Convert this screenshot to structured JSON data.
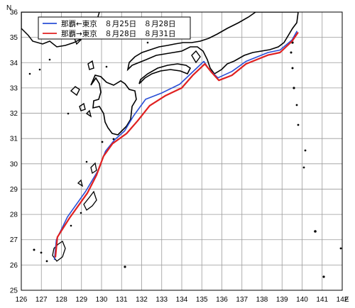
{
  "map": {
    "lat_axis": {
      "label": "N",
      "ticks": [
        "25",
        "26",
        "27",
        "28",
        "29",
        "30",
        "31",
        "32",
        "33",
        "34",
        "35",
        "36"
      ]
    },
    "lon_axis": {
      "label": "E",
      "ticks": [
        "126",
        "127",
        "128",
        "129",
        "130",
        "131",
        "132",
        "133",
        "134",
        "135",
        "136",
        "137",
        "138",
        "139",
        "140",
        "141",
        "142"
      ]
    },
    "legend": [
      {
        "text": "那覇←東京　８月25日　８月28日",
        "color": "#2a4fd6"
      },
      {
        "text": "那覇→東京　８月28日　８月31日",
        "color": "#e02020"
      }
    ],
    "routes": [
      {
        "id": "naha-from-tokyo",
        "color": "#2a4fd6",
        "points": [
          [
            127.65,
            26.2
          ],
          [
            127.75,
            27.0
          ],
          [
            128.3,
            27.9
          ],
          [
            129.2,
            28.9
          ],
          [
            129.8,
            29.7
          ],
          [
            130.2,
            30.5
          ],
          [
            130.65,
            30.95
          ],
          [
            131.15,
            31.3
          ],
          [
            131.6,
            31.9
          ],
          [
            132.2,
            32.55
          ],
          [
            133.0,
            32.8
          ],
          [
            133.9,
            33.15
          ],
          [
            134.5,
            33.6
          ],
          [
            135.1,
            34.05
          ],
          [
            135.35,
            33.75
          ],
          [
            135.8,
            33.4
          ],
          [
            136.5,
            33.65
          ],
          [
            137.2,
            34.05
          ],
          [
            138.3,
            34.4
          ],
          [
            138.9,
            34.5
          ],
          [
            139.5,
            34.9
          ],
          [
            139.75,
            35.25
          ]
        ]
      },
      {
        "id": "naha-to-tokyo",
        "color": "#e02020",
        "points": [
          [
            127.7,
            26.3
          ],
          [
            127.8,
            27.1
          ],
          [
            128.4,
            27.85
          ],
          [
            129.3,
            28.85
          ],
          [
            129.75,
            29.55
          ],
          [
            130.1,
            30.3
          ],
          [
            130.55,
            30.8
          ],
          [
            131.25,
            31.2
          ],
          [
            131.8,
            31.7
          ],
          [
            132.4,
            32.3
          ],
          [
            133.2,
            32.7
          ],
          [
            134.0,
            33.0
          ],
          [
            134.55,
            33.5
          ],
          [
            135.15,
            33.95
          ],
          [
            135.45,
            33.65
          ],
          [
            135.85,
            33.3
          ],
          [
            136.5,
            33.5
          ],
          [
            137.2,
            33.95
          ],
          [
            138.3,
            34.3
          ],
          [
            138.9,
            34.4
          ],
          [
            139.5,
            34.85
          ],
          [
            139.8,
            35.2
          ]
        ]
      }
    ]
  }
}
